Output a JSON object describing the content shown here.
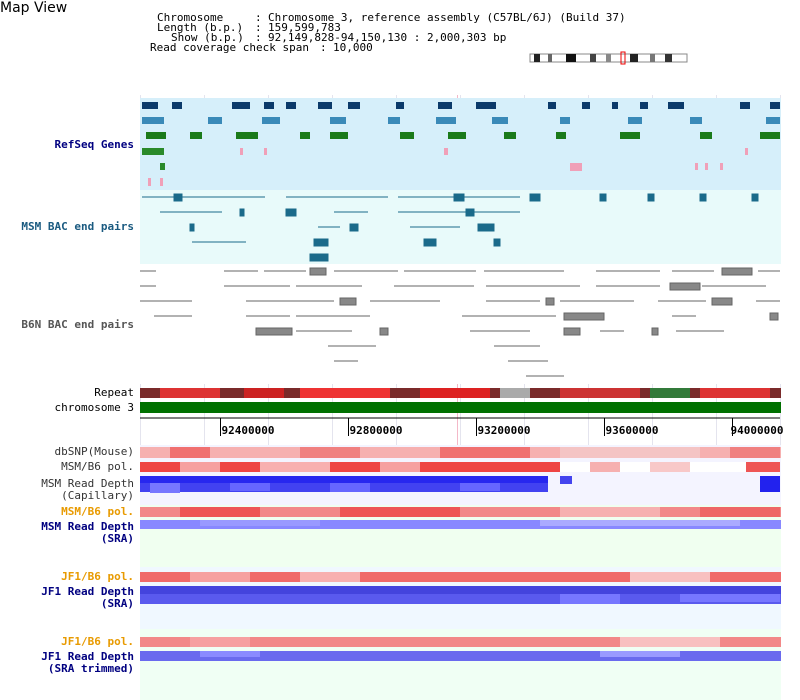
{
  "header": {
    "title": "Map View",
    "chromosome_label": "Chromosome",
    "chromosome_value": "Chromosome 3, reference assembly (C57BL/6J) (Build 37)",
    "length_label": "Length (b.p.)",
    "length_value": "159,599,783",
    "show_label": "Show (b.p.)",
    "show_value": "92,149,828-94,150,130 : 2,000,303 bp",
    "coverage_label": "Read coverage check span",
    "coverage_value": "10,000"
  },
  "tracks": {
    "refseq": "RefSeq Genes",
    "msm_bac": "MSM BAC end pairs",
    "b6n_bac": "B6N BAC end pairs",
    "repeat": "Repeat",
    "chromosome": "chromosome 3",
    "dbsnp": "dbSNP(Mouse)",
    "msm_b6_pol_1": "MSM/B6 pol.",
    "msm_read_depth_cap_1": "MSM Read Depth",
    "msm_read_depth_cap_2": "(Capillary)",
    "msm_b6_pol_2": "MSM/B6 pol.",
    "msm_read_depth_sra_1": "MSM Read Depth",
    "msm_read_depth_sra_2": "(SRA)",
    "jf1_b6_pol_1": "JF1/B6 pol.",
    "jf1_read_depth_1": "JF1 Read Depth",
    "jf1_read_depth_2": "(SRA)",
    "jf1_b6_pol_2": "JF1/B6 pol.",
    "jf1_read_depth_trim_1": "JF1 Read Depth",
    "jf1_read_depth_trim_2": "(SRA trimmed)"
  },
  "axis": {
    "ticks": [
      "92400000",
      "92800000",
      "93200000",
      "93600000",
      "94000000"
    ]
  },
  "colors": {
    "label_blue": "#000080",
    "label_teal": "#1a5a80",
    "label_orange": "#e89a00",
    "refseq_band": "#d6effa",
    "msm_band": "#e8fafa",
    "chrom_green": "#007000",
    "depth_blue": "#2222ee",
    "pol_red": "#ee3333"
  }
}
